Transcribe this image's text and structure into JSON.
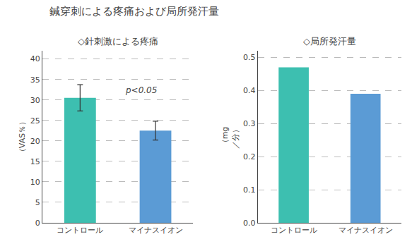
{
  "title": "鍼穿刺による疼痛および局所発汗量",
  "chart_data": [
    {
      "type": "bar",
      "title": "◇針刺激による疼痛",
      "categories": [
        "コントロール",
        "マイナスイオン"
      ],
      "values": [
        30.5,
        22.5
      ],
      "errors": [
        3.2,
        2.3
      ],
      "colors": [
        "#3dbfb0",
        "#5b9bd5"
      ],
      "ylabel": "（VAS％）",
      "ylim": [
        0,
        42
      ],
      "yticks": [
        0,
        5,
        10,
        15,
        20,
        25,
        30,
        35,
        40
      ],
      "grid": true,
      "annotation": "p<0.05"
    },
    {
      "type": "bar",
      "title": "◇局所発汗量",
      "categories": [
        "コントロール",
        "マイナスイオン"
      ],
      "values": [
        0.47,
        0.39
      ],
      "colors": [
        "#3dbfb0",
        "#5b9bd5"
      ],
      "ylabel": "（mg\n／分）",
      "ylim": [
        0,
        0.52
      ],
      "yticks": [
        {
          "value": 0,
          "label": "0.0"
        },
        0.1,
        0.2,
        0.3,
        0.4,
        0.5
      ],
      "grid": true
    }
  ]
}
